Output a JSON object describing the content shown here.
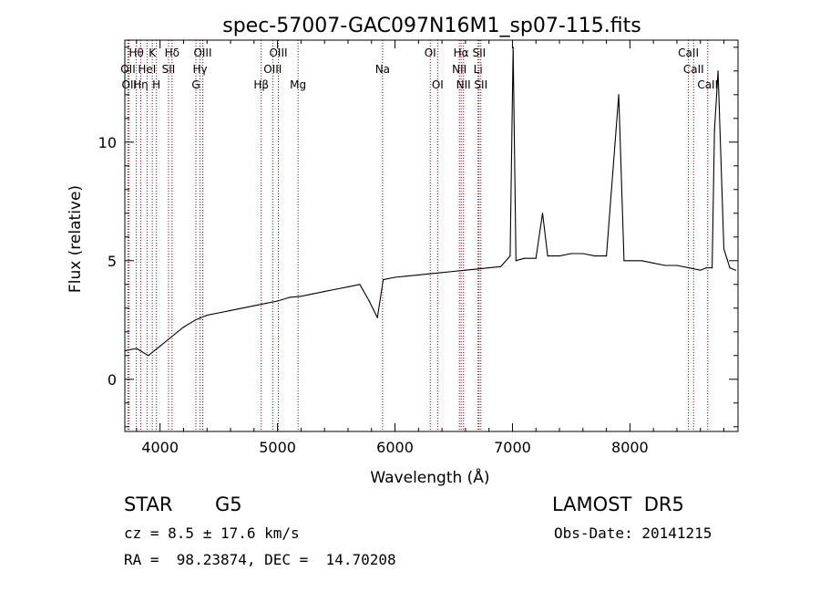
{
  "chart_data": {
    "type": "line",
    "title": "spec-57007-GAC097N16M1_sp07-115.fits",
    "xlabel": "Wavelength (Å)",
    "ylabel": "Flux (relative)",
    "xlim": [
      3700,
      8920
    ],
    "ylim": [
      -2.2,
      14.3
    ],
    "xticks": [
      4000,
      5000,
      6000,
      7000,
      8000
    ],
    "xtick_labels": [
      "4000",
      "5000",
      "6000",
      "7000",
      "8000"
    ],
    "yticks": [
      0,
      5,
      10
    ],
    "ytick_labels": [
      "0",
      "5",
      "10"
    ],
    "grid": false,
    "legend": "none",
    "series": [
      {
        "color": "#000000",
        "x": [
          3700,
          3800,
          3900,
          4000,
          4100,
          4200,
          4300,
          4400,
          4500,
          4600,
          4700,
          4800,
          4900,
          5000,
          5100,
          5200,
          5300,
          5400,
          5500,
          5600,
          5700,
          5780,
          5850,
          5900,
          6000,
          6100,
          6200,
          6300,
          6400,
          6500,
          6600,
          6700,
          6800,
          6900,
          6980,
          7006,
          7030,
          7100,
          7200,
          7256,
          7300,
          7400,
          7500,
          7600,
          7700,
          7800,
          7905,
          7950,
          8000,
          8100,
          8200,
          8300,
          8400,
          8500,
          8600,
          8650,
          8700,
          8720,
          8750,
          8800,
          8850,
          8900
        ],
        "y": [
          1.2,
          1.3,
          1.0,
          1.4,
          1.8,
          2.2,
          2.5,
          2.7,
          2.8,
          2.9,
          3.0,
          3.1,
          3.2,
          3.3,
          3.45,
          3.5,
          3.6,
          3.7,
          3.8,
          3.9,
          4.0,
          3.3,
          2.6,
          4.2,
          4.3,
          4.35,
          4.4,
          4.45,
          4.5,
          4.55,
          4.6,
          4.65,
          4.7,
          4.75,
          5.2,
          14.0,
          5.0,
          5.1,
          5.1,
          7.0,
          5.2,
          5.2,
          5.3,
          5.3,
          5.2,
          5.2,
          12.0,
          5.0,
          5.0,
          5.0,
          4.9,
          4.8,
          4.8,
          4.7,
          4.6,
          4.7,
          4.7,
          10.5,
          13.0,
          5.5,
          4.7,
          4.6
        ]
      }
    ],
    "line_marks": {
      "color": "#990000",
      "lines": [
        {
          "wl": 3727,
          "label": "OII",
          "row": 2
        },
        {
          "wl": 3737,
          "label": "OII",
          "row": 3
        },
        {
          "wl": 3798,
          "label": "Hθ",
          "row": 1
        },
        {
          "wl": 3835,
          "label": "Hη",
          "row": 3
        },
        {
          "wl": 3889,
          "label": "HeI",
          "row": 2
        },
        {
          "wl": 3934,
          "label": "K",
          "row": 1
        },
        {
          "wl": 3969,
          "label": "H",
          "row": 3
        },
        {
          "wl": 4072,
          "label": "SII",
          "row": 2
        },
        {
          "wl": 4102,
          "label": "Hδ",
          "row": 1
        },
        {
          "wl": 4305,
          "label": "G",
          "row": 3
        },
        {
          "wl": 4340,
          "label": "Hγ",
          "row": 2
        },
        {
          "wl": 4363,
          "label": "OIII",
          "row": 1
        },
        {
          "wl": 4861,
          "label": "Hβ",
          "row": 3
        },
        {
          "wl": 4959,
          "label": "OIII",
          "row": 2
        },
        {
          "wl": 5007,
          "label": "OIII",
          "row": 1
        },
        {
          "wl": 5175,
          "label": "Mg",
          "row": 3
        },
        {
          "wl": 5894,
          "label": "Na",
          "row": 2
        },
        {
          "wl": 6300,
          "label": "OI",
          "row": 1
        },
        {
          "wl": 6363,
          "label": "OI",
          "row": 3
        },
        {
          "wl": 6548,
          "label": "NII",
          "row": 2
        },
        {
          "wl": 6563,
          "label": "Hα",
          "row": 1
        },
        {
          "wl": 6583,
          "label": "NII",
          "row": 3
        },
        {
          "wl": 6707,
          "label": "Li",
          "row": 2
        },
        {
          "wl": 6716,
          "label": "SII",
          "row": 1
        },
        {
          "wl": 6731,
          "label": "SII",
          "row": 3
        },
        {
          "wl": 8498,
          "label": "CaII",
          "row": 1
        },
        {
          "wl": 8542,
          "label": "CaII",
          "row": 2
        },
        {
          "wl": 8662,
          "label": "CaII",
          "row": 3
        }
      ]
    }
  },
  "info": {
    "object_class": "STAR",
    "subclass": "G5",
    "survey": "LAMOST  DR5",
    "cz": "cz = 8.5 ± 17.6 km/s",
    "obs_date": "Obs-Date: 20141215",
    "coords": "RA =  98.23874, DEC =  14.70208"
  }
}
